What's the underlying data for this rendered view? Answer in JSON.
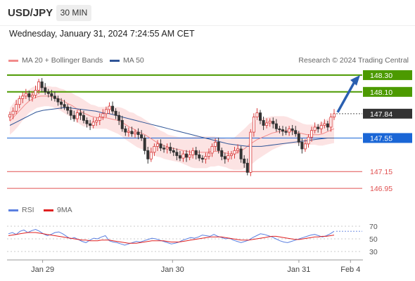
{
  "header": {
    "symbol": "USD/JPY",
    "timeframe": "30 MIN",
    "datetime": "Wednesday, January 31, 2024 7:24:55 AM CET"
  },
  "legend": {
    "ma20": {
      "label": "MA 20 + Bollinger Bands",
      "color": "#f28b8b"
    },
    "ma50": {
      "label": "MA 50",
      "color": "#2f5597"
    },
    "credit": "Research © 2024 Trading Central"
  },
  "rsi_legend": {
    "rsi": {
      "label": "RSI",
      "color": "#5b7fe0"
    },
    "ma9": {
      "label": "9MA",
      "color": "#e02020"
    }
  },
  "colors": {
    "resistance": "#4c9a00",
    "support_blue": "#1a66d6",
    "support_red": "#e05050",
    "current": "#333333",
    "up": "#d83a3a",
    "down": "#333333"
  },
  "chart_data": {
    "type": "candlestick",
    "price_axis": {
      "min": 146.85,
      "max": 148.4
    },
    "levels": [
      {
        "value": 148.3,
        "label": "148.30",
        "kind": "resistance"
      },
      {
        "value": 148.1,
        "label": "148.10",
        "kind": "resistance"
      },
      {
        "value": 147.84,
        "label": "147.84",
        "kind": "current"
      },
      {
        "value": 147.55,
        "label": "147.55",
        "kind": "pivot"
      },
      {
        "value": 147.15,
        "label": "147.15",
        "kind": "support"
      },
      {
        "value": 146.95,
        "label": "146.95",
        "kind": "support"
      }
    ],
    "closes": [
      147.83,
      147.87,
      147.95,
      148.02,
      148.05,
      148.08,
      148.04,
      148.06,
      148.12,
      148.22,
      148.15,
      148.1,
      148.08,
      148.05,
      148.02,
      147.98,
      147.95,
      147.92,
      147.88,
      147.82,
      147.78,
      147.85,
      147.82,
      147.76,
      147.72,
      147.7,
      147.74,
      147.76,
      147.8,
      147.84,
      147.89,
      147.93,
      147.87,
      147.82,
      147.76,
      147.66,
      147.62,
      147.63,
      147.6,
      147.62,
      147.59,
      147.55,
      147.4,
      147.3,
      147.38,
      147.45,
      147.48,
      147.43,
      147.42,
      147.44,
      147.4,
      147.38,
      147.34,
      147.31,
      147.36,
      147.32,
      147.35,
      147.4,
      147.35,
      147.31,
      147.3,
      147.33,
      147.37,
      147.45,
      147.5,
      147.4,
      147.33,
      147.3,
      147.34,
      147.36,
      147.4,
      147.42,
      147.3,
      147.25,
      147.14,
      147.62,
      147.8,
      147.85,
      147.76,
      147.7,
      147.73,
      147.75,
      147.72,
      147.66,
      147.65,
      147.63,
      147.62,
      147.66,
      147.64,
      147.6,
      147.5,
      147.42,
      147.48,
      147.56,
      147.64,
      147.68,
      147.66,
      147.7,
      147.72,
      147.68,
      147.8,
      147.84
    ],
    "ma20": [
      147.75,
      147.8,
      147.85,
      147.9,
      147.95,
      147.99,
      148.02,
      148.04,
      148.05,
      148.05,
      148.05,
      148.04,
      148.03,
      148.01,
      147.99,
      147.96,
      147.94,
      147.91,
      147.88,
      147.85,
      147.83,
      147.81,
      147.8,
      147.79,
      147.79,
      147.79,
      147.78,
      147.77,
      147.76,
      147.74,
      147.71,
      147.68,
      147.66,
      147.63,
      147.61,
      147.59,
      147.56,
      147.53,
      147.5,
      147.48,
      147.46,
      147.44,
      147.43,
      147.42,
      147.41,
      147.4,
      147.39,
      147.38,
      147.38,
      147.38,
      147.38,
      147.38,
      147.39,
      147.39,
      147.39,
      147.38,
      147.37,
      147.36,
      147.36,
      147.38,
      147.4,
      147.43,
      147.47,
      147.5,
      147.53,
      147.55,
      147.57,
      147.59,
      147.61,
      147.62,
      147.63,
      147.64,
      147.64,
      147.63,
      147.62,
      147.61,
      147.6,
      147.59,
      147.59,
      147.59,
      147.59,
      147.6,
      147.62,
      147.64,
      147.66
    ],
    "ma50": [
      147.7,
      147.74,
      147.78,
      147.82,
      147.86,
      147.88,
      147.89,
      147.9,
      147.91,
      147.91,
      147.9,
      147.89,
      147.88,
      147.87,
      147.85,
      147.84,
      147.82,
      147.8,
      147.78,
      147.76,
      147.74,
      147.72,
      147.7,
      147.68,
      147.66,
      147.64,
      147.62,
      147.6,
      147.58,
      147.56,
      147.54,
      147.52,
      147.5,
      147.48,
      147.47,
      147.46,
      147.45,
      147.45,
      147.45,
      147.46,
      147.47,
      147.48,
      147.49,
      147.5,
      147.51,
      147.52,
      147.53,
      147.54,
      147.55,
      147.55
    ],
    "rsi_axis": {
      "min": 20,
      "max": 80,
      "ticks": [
        70,
        50,
        30
      ]
    },
    "rsi": [
      58,
      60,
      57,
      62,
      64,
      60,
      63,
      65,
      62,
      58,
      55,
      57,
      60,
      61,
      58,
      54,
      50,
      52,
      49,
      46,
      44,
      48,
      51,
      50,
      53,
      55,
      47,
      45,
      44,
      42,
      40,
      42,
      44,
      46,
      45,
      47,
      49,
      51,
      50,
      48,
      46,
      44,
      42,
      43,
      45,
      48,
      50,
      52,
      51,
      53,
      56,
      55,
      54,
      57,
      54,
      52,
      50,
      51,
      48,
      46,
      44,
      46,
      48,
      52,
      55,
      58,
      57,
      55,
      53,
      50,
      47,
      45,
      44,
      46,
      48,
      50,
      52,
      54,
      56,
      57,
      55,
      53,
      55,
      58,
      62
    ],
    "rsi_ma9": [
      55,
      56,
      57,
      58,
      59,
      60,
      60,
      60,
      59,
      58,
      57,
      56,
      55,
      54,
      53,
      52,
      51,
      50,
      49,
      48,
      48,
      47,
      47,
      47,
      48,
      48,
      48,
      47,
      46,
      45,
      44,
      43,
      43,
      43,
      44,
      45,
      46,
      47,
      47,
      47,
      47,
      46,
      45,
      45,
      45,
      46,
      47,
      48,
      49,
      50,
      51,
      52,
      53,
      53,
      53,
      53,
      52,
      51,
      50,
      49,
      48,
      48,
      48,
      49,
      50,
      51,
      52,
      53,
      54,
      54,
      53,
      52,
      51,
      50,
      49,
      49,
      50,
      51,
      52,
      53,
      53,
      54,
      54,
      55,
      56
    ],
    "x_labels": [
      {
        "label": "Jan 29",
        "at": 0.1
      },
      {
        "label": "Jan 30",
        "at": 0.465
      },
      {
        "label": "Jan 31",
        "at": 0.82
      },
      {
        "label": "Feb 4",
        "at": 0.965
      }
    ]
  }
}
